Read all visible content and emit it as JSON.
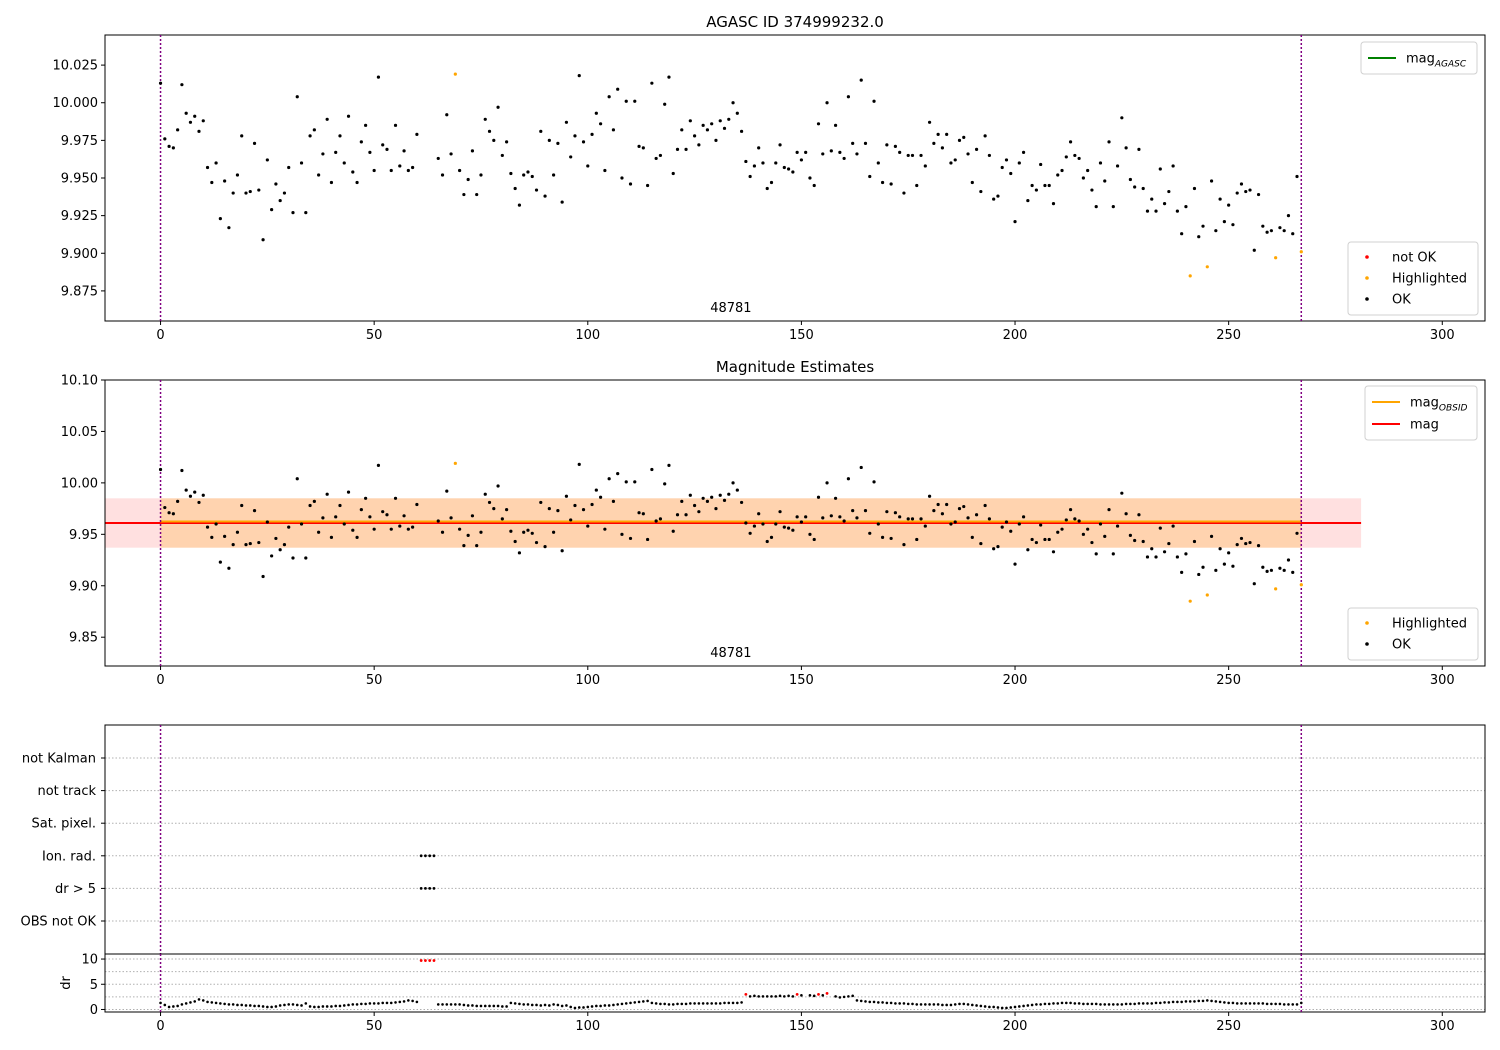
{
  "chart_data": [
    {
      "type": "scatter",
      "title": "AGASC ID 374999232.0",
      "annotation": "48781",
      "xlim": [
        -13,
        310
      ],
      "ylim": [
        9.855,
        10.045
      ],
      "xticks": [
        0,
        50,
        100,
        150,
        200,
        250,
        300
      ],
      "yticks": [
        9.875,
        9.9,
        9.925,
        9.95,
        9.975,
        10.0,
        10.025
      ],
      "ytick_labels": [
        "9.875",
        "9.900",
        "9.925",
        "9.950",
        "9.975",
        "10.000",
        "10.025"
      ],
      "vlines": [
        0,
        267
      ],
      "legends": [
        {
          "position": "top-right",
          "entries": [
            {
              "label_main": "mag",
              "label_sub": "AGASC",
              "color": "#008000",
              "marker": "line"
            }
          ]
        },
        {
          "position": "bottom-right",
          "entries": [
            {
              "label": "not OK",
              "color": "#ff0000",
              "marker": "dot"
            },
            {
              "label": "Highlighted",
              "color": "#ffa500",
              "marker": "dot"
            },
            {
              "label": "OK",
              "color": "#000000",
              "marker": "dot"
            }
          ]
        }
      ],
      "highlighted": [
        [
          69,
          10.019
        ],
        [
          241,
          9.885
        ],
        [
          245,
          9.891
        ],
        [
          261,
          9.897
        ],
        [
          267,
          9.901
        ]
      ]
    },
    {
      "type": "scatter",
      "title": "Magnitude Estimates",
      "annotation": "48781",
      "xlim": [
        -13,
        310
      ],
      "ylim": [
        9.822,
        10.1
      ],
      "xticks": [
        0,
        50,
        100,
        150,
        200,
        250,
        300
      ],
      "yticks": [
        9.85,
        9.9,
        9.95,
        10.0,
        10.05,
        10.1
      ],
      "ytick_labels": [
        "9.85",
        "9.90",
        "9.95",
        "10.00",
        "10.05",
        "10.10"
      ],
      "vlines": [
        0,
        267
      ],
      "mag_obsid": {
        "value": 9.961,
        "band": [
          9.937,
          9.985
        ],
        "x_range": [
          0,
          267
        ],
        "color": "#ffa500"
      },
      "mag": {
        "value": 9.961,
        "band": [
          9.937,
          9.985
        ],
        "x_range": [
          -13,
          281
        ],
        "color": "#ff0000"
      },
      "legends": [
        {
          "position": "top-right",
          "entries": [
            {
              "label_main": "mag",
              "label_sub": "OBSID",
              "color": "#ffa500",
              "marker": "line"
            },
            {
              "label_main": "mag",
              "label_sub": "",
              "color": "#ff0000",
              "marker": "line"
            }
          ]
        },
        {
          "position": "bottom-right",
          "entries": [
            {
              "label": "Highlighted",
              "color": "#ffa500",
              "marker": "dot"
            },
            {
              "label": "OK",
              "color": "#000000",
              "marker": "dot"
            }
          ]
        }
      ],
      "highlighted": [
        [
          69,
          10.019
        ],
        [
          241,
          9.885
        ],
        [
          245,
          9.891
        ],
        [
          261,
          9.897
        ],
        [
          267,
          9.901
        ]
      ]
    },
    {
      "type": "scatter",
      "title": "",
      "xlim": [
        -13,
        310
      ],
      "xticks": [
        0,
        50,
        100,
        150,
        200,
        250,
        300
      ],
      "flag_labels": [
        "not Kalman",
        "not track",
        "Sat. pixel.",
        "Ion. rad.",
        "dr > 5",
        "OBS not OK"
      ],
      "flag_points": [
        {
          "flag": "Ion. rad.",
          "x": [
            61,
            62,
            63,
            64
          ]
        },
        {
          "flag": "dr > 5",
          "x": [
            61,
            62,
            63,
            64
          ]
        }
      ],
      "vlines": [
        0,
        267
      ]
    },
    {
      "type": "scatter",
      "title": "",
      "ylabel": "dr",
      "xlim": [
        -13,
        310
      ],
      "ylim": [
        -0.5,
        11
      ],
      "xticks": [
        0,
        50,
        100,
        150,
        200,
        250,
        300
      ],
      "yticks": [
        0,
        5,
        10
      ],
      "ytick_labels": [
        "0",
        "5",
        "10"
      ],
      "dashed_hlines": [
        2.5,
        7.5
      ],
      "vlines": [
        0,
        267
      ],
      "red_points": [
        [
          61,
          9.7
        ],
        [
          62,
          9.7
        ],
        [
          63,
          9.7
        ],
        [
          64,
          9.7
        ],
        [
          137,
          3.0
        ],
        [
          149,
          3.0
        ],
        [
          154,
          3.0
        ],
        [
          156,
          3.2
        ]
      ]
    }
  ],
  "tick_labels_x": [
    "0",
    "50",
    "100",
    "150",
    "200",
    "250",
    "300"
  ],
  "mag_series": [
    10.013,
    9.976,
    9.971,
    9.97,
    9.982,
    10.012,
    9.993,
    9.987,
    9.991,
    9.981,
    9.988,
    9.957,
    9.947,
    9.96,
    9.923,
    9.948,
    9.917,
    9.94,
    9.952,
    9.978,
    9.94,
    9.941,
    9.973,
    9.942,
    9.909,
    9.962,
    9.929,
    9.946,
    9.935,
    9.94,
    9.957,
    9.927,
    10.004,
    9.96,
    9.927,
    9.978,
    9.982,
    9.952,
    9.966,
    9.989,
    9.947,
    9.967,
    9.978,
    9.96,
    9.991,
    9.954,
    9.947,
    9.974,
    9.985,
    9.967,
    9.955,
    10.017,
    9.972,
    9.969,
    9.955,
    9.985,
    9.958,
    9.968,
    9.955,
    9.957,
    9.979,
    null,
    null,
    null,
    null,
    9.963,
    9.952,
    9.992,
    9.966,
    10.019,
    9.955,
    9.939,
    9.949,
    9.968,
    9.939,
    9.952,
    9.989,
    9.981,
    9.975,
    9.997,
    9.965,
    9.974,
    9.953,
    9.943,
    9.932,
    9.952,
    9.954,
    9.951,
    9.942,
    9.981,
    9.938,
    9.975,
    9.952,
    9.973,
    9.934,
    9.987,
    9.964,
    9.978,
    10.018,
    9.974,
    9.958,
    9.979,
    9.993,
    9.986,
    9.955,
    10.004,
    9.982,
    10.009,
    9.95,
    10.001,
    9.946,
    10.001,
    9.971,
    9.97,
    9.945,
    10.013,
    9.963,
    9.965,
    9.999,
    10.017,
    9.953,
    9.969,
    9.982,
    9.969,
    9.988,
    9.978,
    9.972,
    9.985,
    9.982,
    9.986,
    9.975,
    9.988,
    9.983,
    9.989,
    10.0,
    9.993,
    9.981,
    9.961,
    9.951,
    9.958,
    9.97,
    9.96,
    9.943,
    9.947,
    9.96,
    9.972,
    9.957,
    9.956,
    9.954,
    9.967,
    9.962,
    9.967,
    9.95,
    9.945,
    9.986,
    9.966,
    10.0,
    9.968,
    9.985,
    9.967,
    9.963,
    10.004,
    9.973,
    9.966,
    10.015,
    9.973,
    9.951,
    10.001,
    9.96,
    9.947,
    9.972,
    9.946,
    9.971,
    9.967,
    9.94,
    9.965,
    9.965,
    9.945,
    9.965,
    9.958,
    9.987,
    9.973,
    9.979,
    9.97,
    9.979,
    9.96,
    9.962,
    9.975,
    9.977,
    9.966,
    9.947,
    9.969,
    9.941,
    9.978,
    9.965,
    9.936,
    9.938,
    9.957,
    9.962,
    9.953,
    9.921,
    9.96,
    9.967,
    9.935,
    9.945,
    9.942,
    9.959,
    9.945,
    9.945,
    9.933,
    9.952,
    9.955,
    9.964,
    9.974,
    9.965,
    9.963,
    9.95,
    9.955,
    9.942,
    9.931,
    9.96,
    9.948,
    9.974,
    9.931,
    9.958,
    9.99,
    9.97,
    9.949,
    9.944,
    9.969,
    9.943,
    9.928,
    9.936,
    9.928,
    9.956,
    9.933,
    9.941,
    9.958,
    9.928,
    9.913,
    9.931,
    null,
    9.943,
    9.911,
    9.918,
    null,
    9.948,
    9.915,
    9.936,
    9.921,
    9.932,
    9.919,
    9.94,
    9.946,
    9.941,
    9.942,
    9.902,
    9.939,
    9.918,
    9.914,
    9.915,
    null,
    9.917,
    9.915,
    9.925,
    9.913,
    9.951,
    null
  ],
  "dr_series": [
    1.3,
    0.9,
    0.5,
    0.6,
    0.7,
    1.0,
    1.2,
    1.4,
    1.6,
    2.0,
    1.8,
    1.5,
    1.4,
    1.3,
    1.2,
    1.1,
    1.0,
    1.0,
    0.9,
    0.9,
    0.8,
    0.8,
    0.7,
    0.7,
    0.6,
    0.5,
    0.5,
    0.6,
    0.8,
    0.9,
    1.0,
    1.0,
    0.9,
    0.8,
    1.2,
    0.6,
    0.5,
    0.5,
    0.6,
    0.6,
    0.6,
    0.7,
    0.7,
    0.8,
    0.9,
    1.0,
    1.0,
    1.1,
    1.1,
    1.2,
    1.2,
    1.2,
    1.3,
    1.3,
    1.3,
    1.4,
    1.5,
    1.6,
    1.8,
    1.7,
    1.5,
    null,
    null,
    null,
    null,
    1.0,
    1.0,
    1.0,
    1.0,
    1.0,
    1.0,
    0.9,
    0.8,
    0.8,
    0.7,
    0.7,
    0.7,
    0.7,
    0.7,
    0.7,
    0.6,
    0.6,
    1.3,
    1.2,
    1.1,
    1.0,
    1.0,
    0.9,
    0.9,
    0.8,
    0.9,
    0.8,
    1.0,
    0.9,
    0.7,
    0.8,
    0.5,
    0.3,
    0.4,
    0.4,
    0.5,
    0.6,
    0.7,
    0.7,
    0.8,
    0.8,
    0.9,
    1.0,
    1.1,
    1.2,
    1.3,
    1.4,
    1.5,
    1.6,
    1.7,
    1.3,
    1.2,
    1.1,
    1.1,
    1.0,
    1.0,
    1.1,
    1.1,
    1.1,
    1.2,
    1.2,
    1.2,
    1.2,
    1.2,
    1.2,
    1.2,
    1.2,
    1.3,
    1.3,
    1.3,
    1.3,
    1.4,
    null,
    2.6,
    2.7,
    2.6,
    2.6,
    2.6,
    2.6,
    2.6,
    2.7,
    2.6,
    2.7,
    2.6,
    2.7,
    2.8,
    null,
    2.8,
    2.7,
    2.7,
    2.8,
    null,
    null,
    2.6,
    2.4,
    2.5,
    2.6,
    2.7,
    1.8,
    1.7,
    1.6,
    1.5,
    1.5,
    1.4,
    1.4,
    1.3,
    1.3,
    1.2,
    1.2,
    1.2,
    1.1,
    1.1,
    1.0,
    1.0,
    1.0,
    1.0,
    1.0,
    1.0,
    0.9,
    0.9,
    0.9,
    1.0,
    1.1,
    1.1,
    1.0,
    0.9,
    0.8,
    0.7,
    0.6,
    0.5,
    0.5,
    0.4,
    0.3,
    0.3,
    0.4,
    0.5,
    0.6,
    0.7,
    0.8,
    0.9,
    1.0,
    1.0,
    1.1,
    1.1,
    1.2,
    1.2,
    1.3,
    1.3,
    1.3,
    1.2,
    1.2,
    1.1,
    1.1,
    1.1,
    1.1,
    1.0,
    1.0,
    1.0,
    1.0,
    1.0,
    1.0,
    1.1,
    1.1,
    1.1,
    1.2,
    1.2,
    1.2,
    1.2,
    1.3,
    1.3,
    1.4,
    1.4,
    1.5,
    1.5,
    1.5,
    1.6,
    1.6,
    1.6,
    1.7,
    1.7,
    1.8,
    1.7,
    1.6,
    1.5,
    1.4,
    1.3,
    1.3,
    1.2,
    1.2,
    1.2,
    1.2,
    1.2,
    1.2,
    1.2,
    1.1,
    1.1,
    1.1,
    1.1,
    1.0,
    1.0,
    1.0,
    1.0,
    1.3
  ]
}
